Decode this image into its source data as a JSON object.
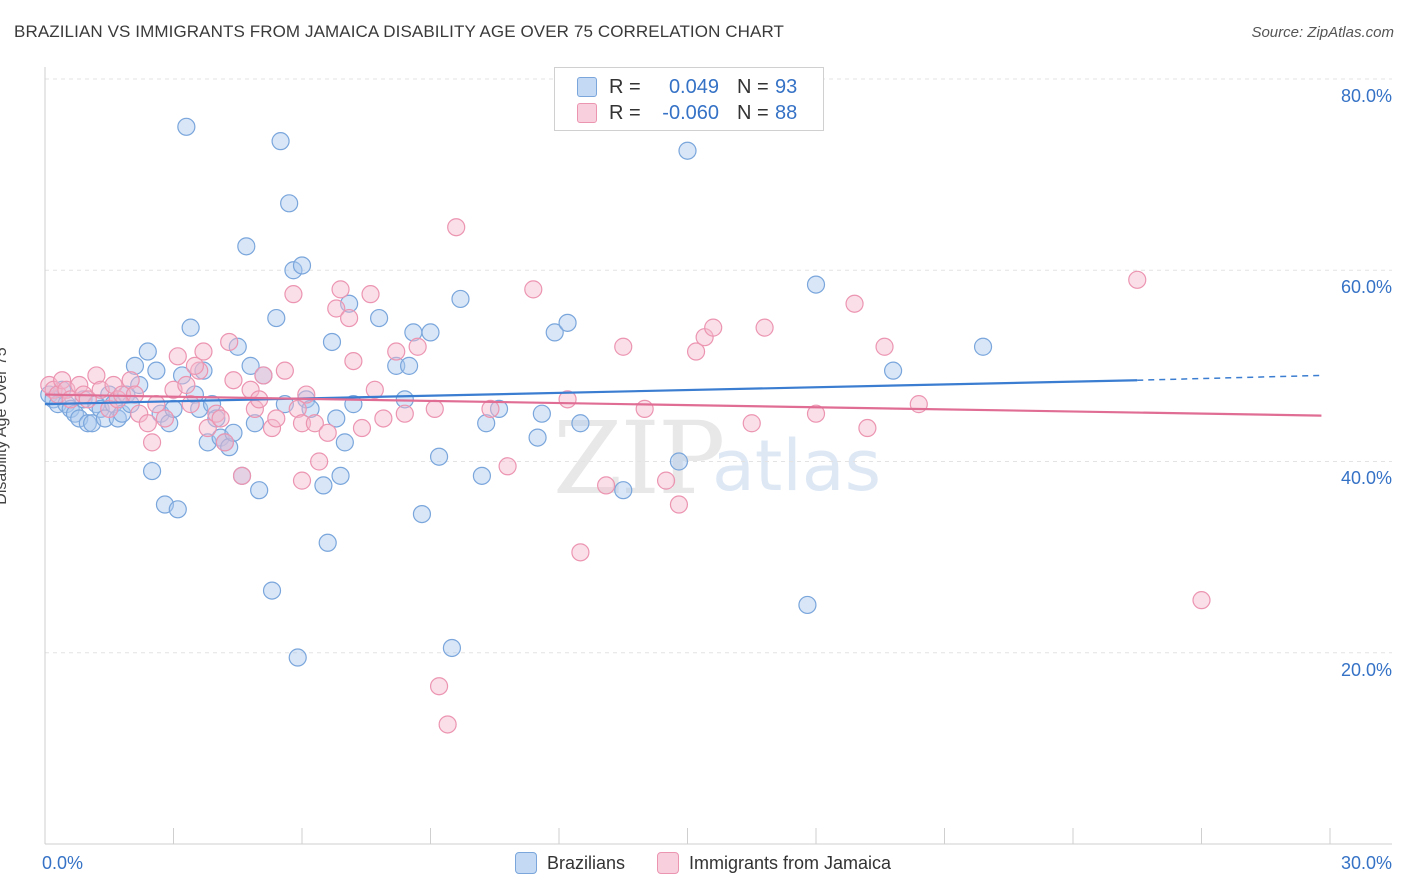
{
  "header": {
    "title": "BRAZILIAN VS IMMIGRANTS FROM JAMAICA DISABILITY AGE OVER 75 CORRELATION CHART",
    "source": "Source: ZipAtlas.com"
  },
  "watermark": {
    "zip": "ZIP",
    "atlas": "atlas"
  },
  "legend_top": [
    {
      "r_label": "R =",
      "r_value": "0.049",
      "n_label": "N =",
      "n_value": "93"
    },
    {
      "r_label": "R =",
      "r_value": "-0.060",
      "n_label": "N =",
      "n_value": "88"
    }
  ],
  "legend_bottom": [
    {
      "label": "Brazilians"
    },
    {
      "label": "Immigrants from Jamaica"
    }
  ],
  "colors": {
    "blue_fill": "#a9c8ee",
    "blue_stroke": "#7aa6dc",
    "blue_line": "#3b7dd0",
    "pink_fill": "#f5b9cc",
    "pink_stroke": "#ec95b1",
    "pink_line": "#e06d94",
    "tick_text": "#3572c6",
    "grid": "#e3e3e3"
  },
  "chart_data": {
    "type": "scatter",
    "title": "BRAZILIAN VS IMMIGRANTS FROM JAMAICA DISABILITY AGE OVER 75 CORRELATION CHART",
    "xlabel": "",
    "ylabel": "Disability Age Over 75",
    "xlim": [
      0,
      30
    ],
    "ylim": [
      0,
      85
    ],
    "x_ticks": [
      "0.0%",
      "30.0%"
    ],
    "y_ticks": [
      "20.0%",
      "40.0%",
      "60.0%",
      "80.0%"
    ],
    "y_tick_values": [
      20,
      40,
      60,
      80
    ],
    "grid": true,
    "legend_placement": "top-center",
    "series": [
      {
        "name": "Brazilians",
        "color": "#7aa6dc",
        "trend": {
          "x0": 0,
          "y0": 46.0,
          "x1": 25.5,
          "y1": 48.5,
          "dash_x1": 29.8,
          "dash_y1": 49.0
        },
        "points": [
          [
            0.1,
            47.0
          ],
          [
            0.2,
            46.5
          ],
          [
            0.3,
            46.0
          ],
          [
            0.4,
            47.5
          ],
          [
            0.5,
            46.0
          ],
          [
            0.6,
            45.5
          ],
          [
            0.7,
            45.0
          ],
          [
            0.8,
            44.5
          ],
          [
            0.9,
            46.5
          ],
          [
            1.0,
            44.0
          ],
          [
            1.1,
            44.0
          ],
          [
            1.2,
            46.0
          ],
          [
            1.3,
            45.5
          ],
          [
            1.4,
            44.5
          ],
          [
            1.5,
            47.0
          ],
          [
            1.6,
            46.0
          ],
          [
            1.7,
            44.5
          ],
          [
            1.8,
            45.0
          ],
          [
            1.9,
            47.0
          ],
          [
            2.0,
            46.0
          ],
          [
            2.1,
            50.0
          ],
          [
            2.2,
            48.0
          ],
          [
            2.4,
            51.5
          ],
          [
            2.5,
            39.0
          ],
          [
            2.6,
            49.5
          ],
          [
            2.7,
            45.0
          ],
          [
            2.8,
            35.5
          ],
          [
            2.9,
            44.0
          ],
          [
            3.0,
            45.5
          ],
          [
            3.1,
            35.0
          ],
          [
            3.2,
            49.0
          ],
          [
            3.3,
            75.0
          ],
          [
            3.4,
            54.0
          ],
          [
            3.5,
            47.0
          ],
          [
            3.6,
            45.5
          ],
          [
            3.7,
            49.5
          ],
          [
            3.8,
            42.0
          ],
          [
            3.9,
            46.0
          ],
          [
            4.0,
            44.5
          ],
          [
            4.1,
            42.5
          ],
          [
            4.2,
            42.0
          ],
          [
            4.3,
            41.5
          ],
          [
            4.4,
            43.0
          ],
          [
            4.5,
            52.0
          ],
          [
            4.6,
            38.5
          ],
          [
            4.7,
            62.5
          ],
          [
            4.8,
            50.0
          ],
          [
            4.9,
            44.0
          ],
          [
            5.0,
            37.0
          ],
          [
            5.1,
            49.0
          ],
          [
            5.3,
            26.5
          ],
          [
            5.4,
            55.0
          ],
          [
            5.5,
            73.5
          ],
          [
            5.6,
            46.0
          ],
          [
            5.7,
            67.0
          ],
          [
            5.8,
            60.0
          ],
          [
            5.9,
            19.5
          ],
          [
            6.0,
            60.5
          ],
          [
            6.1,
            46.5
          ],
          [
            6.2,
            45.5
          ],
          [
            6.5,
            37.5
          ],
          [
            6.6,
            31.5
          ],
          [
            6.7,
            52.5
          ],
          [
            6.8,
            44.5
          ],
          [
            6.9,
            38.5
          ],
          [
            7.0,
            42.0
          ],
          [
            7.1,
            56.5
          ],
          [
            7.2,
            46.0
          ],
          [
            7.8,
            55.0
          ],
          [
            8.2,
            50.0
          ],
          [
            8.5,
            50.0
          ],
          [
            8.6,
            53.5
          ],
          [
            8.8,
            34.5
          ],
          [
            9.0,
            53.5
          ],
          [
            9.5,
            20.5
          ],
          [
            9.7,
            57.0
          ],
          [
            10.2,
            38.5
          ],
          [
            10.3,
            44.0
          ],
          [
            10.6,
            45.5
          ],
          [
            11.5,
            42.5
          ],
          [
            11.6,
            45.0
          ],
          [
            11.9,
            53.5
          ],
          [
            12.2,
            54.5
          ],
          [
            13.5,
            37.0
          ],
          [
            14.8,
            40.0
          ],
          [
            15.0,
            72.5
          ],
          [
            17.8,
            25.0
          ],
          [
            18.0,
            58.5
          ],
          [
            19.8,
            49.5
          ],
          [
            21.9,
            52.0
          ],
          [
            9.2,
            40.5
          ],
          [
            8.4,
            46.5
          ],
          [
            12.5,
            44.0
          ]
        ]
      },
      {
        "name": "Immigrants from Jamaica",
        "color": "#ec95b1",
        "trend": {
          "x0": 0,
          "y0": 47.0,
          "x1": 29.8,
          "y1": 44.8
        },
        "points": [
          [
            0.1,
            48.0
          ],
          [
            0.2,
            47.5
          ],
          [
            0.3,
            47.0
          ],
          [
            0.4,
            48.5
          ],
          [
            0.5,
            47.5
          ],
          [
            0.6,
            46.5
          ],
          [
            0.8,
            48.0
          ],
          [
            0.9,
            47.0
          ],
          [
            1.0,
            46.5
          ],
          [
            1.2,
            49.0
          ],
          [
            1.3,
            47.5
          ],
          [
            1.5,
            45.5
          ],
          [
            1.6,
            48.0
          ],
          [
            1.7,
            46.5
          ],
          [
            1.8,
            47.0
          ],
          [
            2.0,
            48.5
          ],
          [
            2.1,
            47.0
          ],
          [
            2.2,
            45.0
          ],
          [
            2.4,
            44.0
          ],
          [
            2.5,
            42.0
          ],
          [
            2.6,
            46.0
          ],
          [
            2.8,
            44.5
          ],
          [
            3.0,
            47.5
          ],
          [
            3.1,
            51.0
          ],
          [
            3.3,
            48.0
          ],
          [
            3.4,
            46.0
          ],
          [
            3.6,
            49.5
          ],
          [
            3.7,
            51.5
          ],
          [
            3.8,
            43.5
          ],
          [
            4.0,
            45.0
          ],
          [
            4.1,
            44.5
          ],
          [
            4.2,
            42.0
          ],
          [
            4.3,
            52.5
          ],
          [
            4.4,
            48.5
          ],
          [
            4.6,
            38.5
          ],
          [
            4.8,
            47.5
          ],
          [
            4.9,
            45.5
          ],
          [
            5.0,
            46.5
          ],
          [
            5.1,
            49.0
          ],
          [
            5.3,
            43.5
          ],
          [
            5.4,
            44.5
          ],
          [
            5.6,
            49.5
          ],
          [
            5.8,
            57.5
          ],
          [
            5.9,
            45.5
          ],
          [
            6.0,
            44.0
          ],
          [
            6.1,
            47.0
          ],
          [
            6.3,
            44.0
          ],
          [
            6.4,
            40.0
          ],
          [
            6.6,
            43.0
          ],
          [
            6.8,
            56.0
          ],
          [
            6.9,
            58.0
          ],
          [
            7.1,
            55.0
          ],
          [
            7.2,
            50.5
          ],
          [
            7.4,
            43.5
          ],
          [
            7.6,
            57.5
          ],
          [
            7.7,
            47.5
          ],
          [
            7.9,
            44.5
          ],
          [
            8.2,
            51.5
          ],
          [
            8.4,
            45.0
          ],
          [
            8.7,
            52.0
          ],
          [
            9.1,
            45.5
          ],
          [
            9.2,
            16.5
          ],
          [
            9.4,
            12.5
          ],
          [
            9.6,
            64.5
          ],
          [
            10.4,
            45.5
          ],
          [
            10.8,
            39.5
          ],
          [
            11.4,
            58.0
          ],
          [
            12.2,
            46.5
          ],
          [
            12.5,
            30.5
          ],
          [
            13.1,
            37.5
          ],
          [
            13.5,
            52.0
          ],
          [
            14.0,
            45.5
          ],
          [
            14.5,
            38.0
          ],
          [
            14.8,
            35.5
          ],
          [
            15.2,
            51.5
          ],
          [
            15.4,
            53.0
          ],
          [
            15.6,
            54.0
          ],
          [
            16.5,
            44.0
          ],
          [
            16.8,
            54.0
          ],
          [
            18.0,
            45.0
          ],
          [
            18.9,
            56.5
          ],
          [
            19.2,
            43.5
          ],
          [
            19.6,
            52.0
          ],
          [
            20.4,
            46.0
          ],
          [
            25.5,
            59.0
          ],
          [
            27.0,
            25.5
          ],
          [
            6.0,
            38.0
          ],
          [
            3.5,
            50.0
          ]
        ]
      }
    ]
  }
}
